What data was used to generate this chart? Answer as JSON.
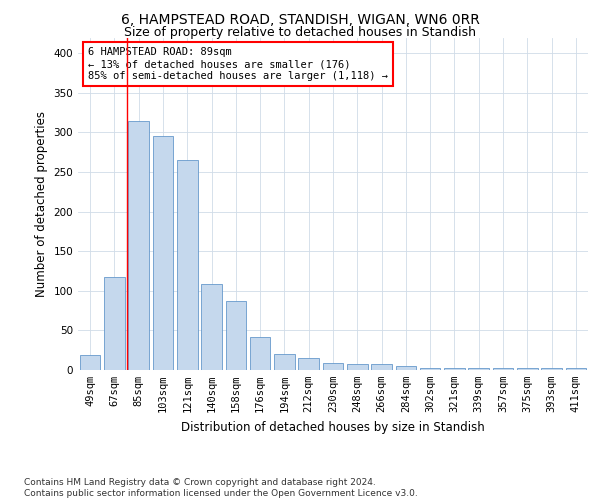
{
  "title": "6, HAMPSTEAD ROAD, STANDISH, WIGAN, WN6 0RR",
  "subtitle": "Size of property relative to detached houses in Standish",
  "xlabel": "Distribution of detached houses by size in Standish",
  "ylabel": "Number of detached properties",
  "bar_color": "#c5d8ed",
  "bar_edge_color": "#6699cc",
  "background_color": "#ffffff",
  "grid_color": "#d0dce8",
  "annotation_text": "6 HAMPSTEAD ROAD: 89sqm\n← 13% of detached houses are smaller (176)\n85% of semi-detached houses are larger (1,118) →",
  "red_line_x": 2,
  "categories": [
    "49sqm",
    "67sqm",
    "85sqm",
    "103sqm",
    "121sqm",
    "140sqm",
    "158sqm",
    "176sqm",
    "194sqm",
    "212sqm",
    "230sqm",
    "248sqm",
    "266sqm",
    "284sqm",
    "302sqm",
    "321sqm",
    "339sqm",
    "357sqm",
    "375sqm",
    "393sqm",
    "411sqm"
  ],
  "values": [
    19,
    118,
    315,
    295,
    265,
    109,
    87,
    42,
    20,
    15,
    9,
    8,
    7,
    5,
    2,
    2,
    3,
    2,
    3,
    2,
    3
  ],
  "ylim": [
    0,
    420
  ],
  "yticks": [
    0,
    50,
    100,
    150,
    200,
    250,
    300,
    350,
    400
  ],
  "footnote": "Contains HM Land Registry data © Crown copyright and database right 2024.\nContains public sector information licensed under the Open Government Licence v3.0.",
  "title_fontsize": 10,
  "subtitle_fontsize": 9,
  "axis_label_fontsize": 8.5,
  "tick_fontsize": 7.5,
  "annot_fontsize": 7.5,
  "footnote_fontsize": 6.5
}
